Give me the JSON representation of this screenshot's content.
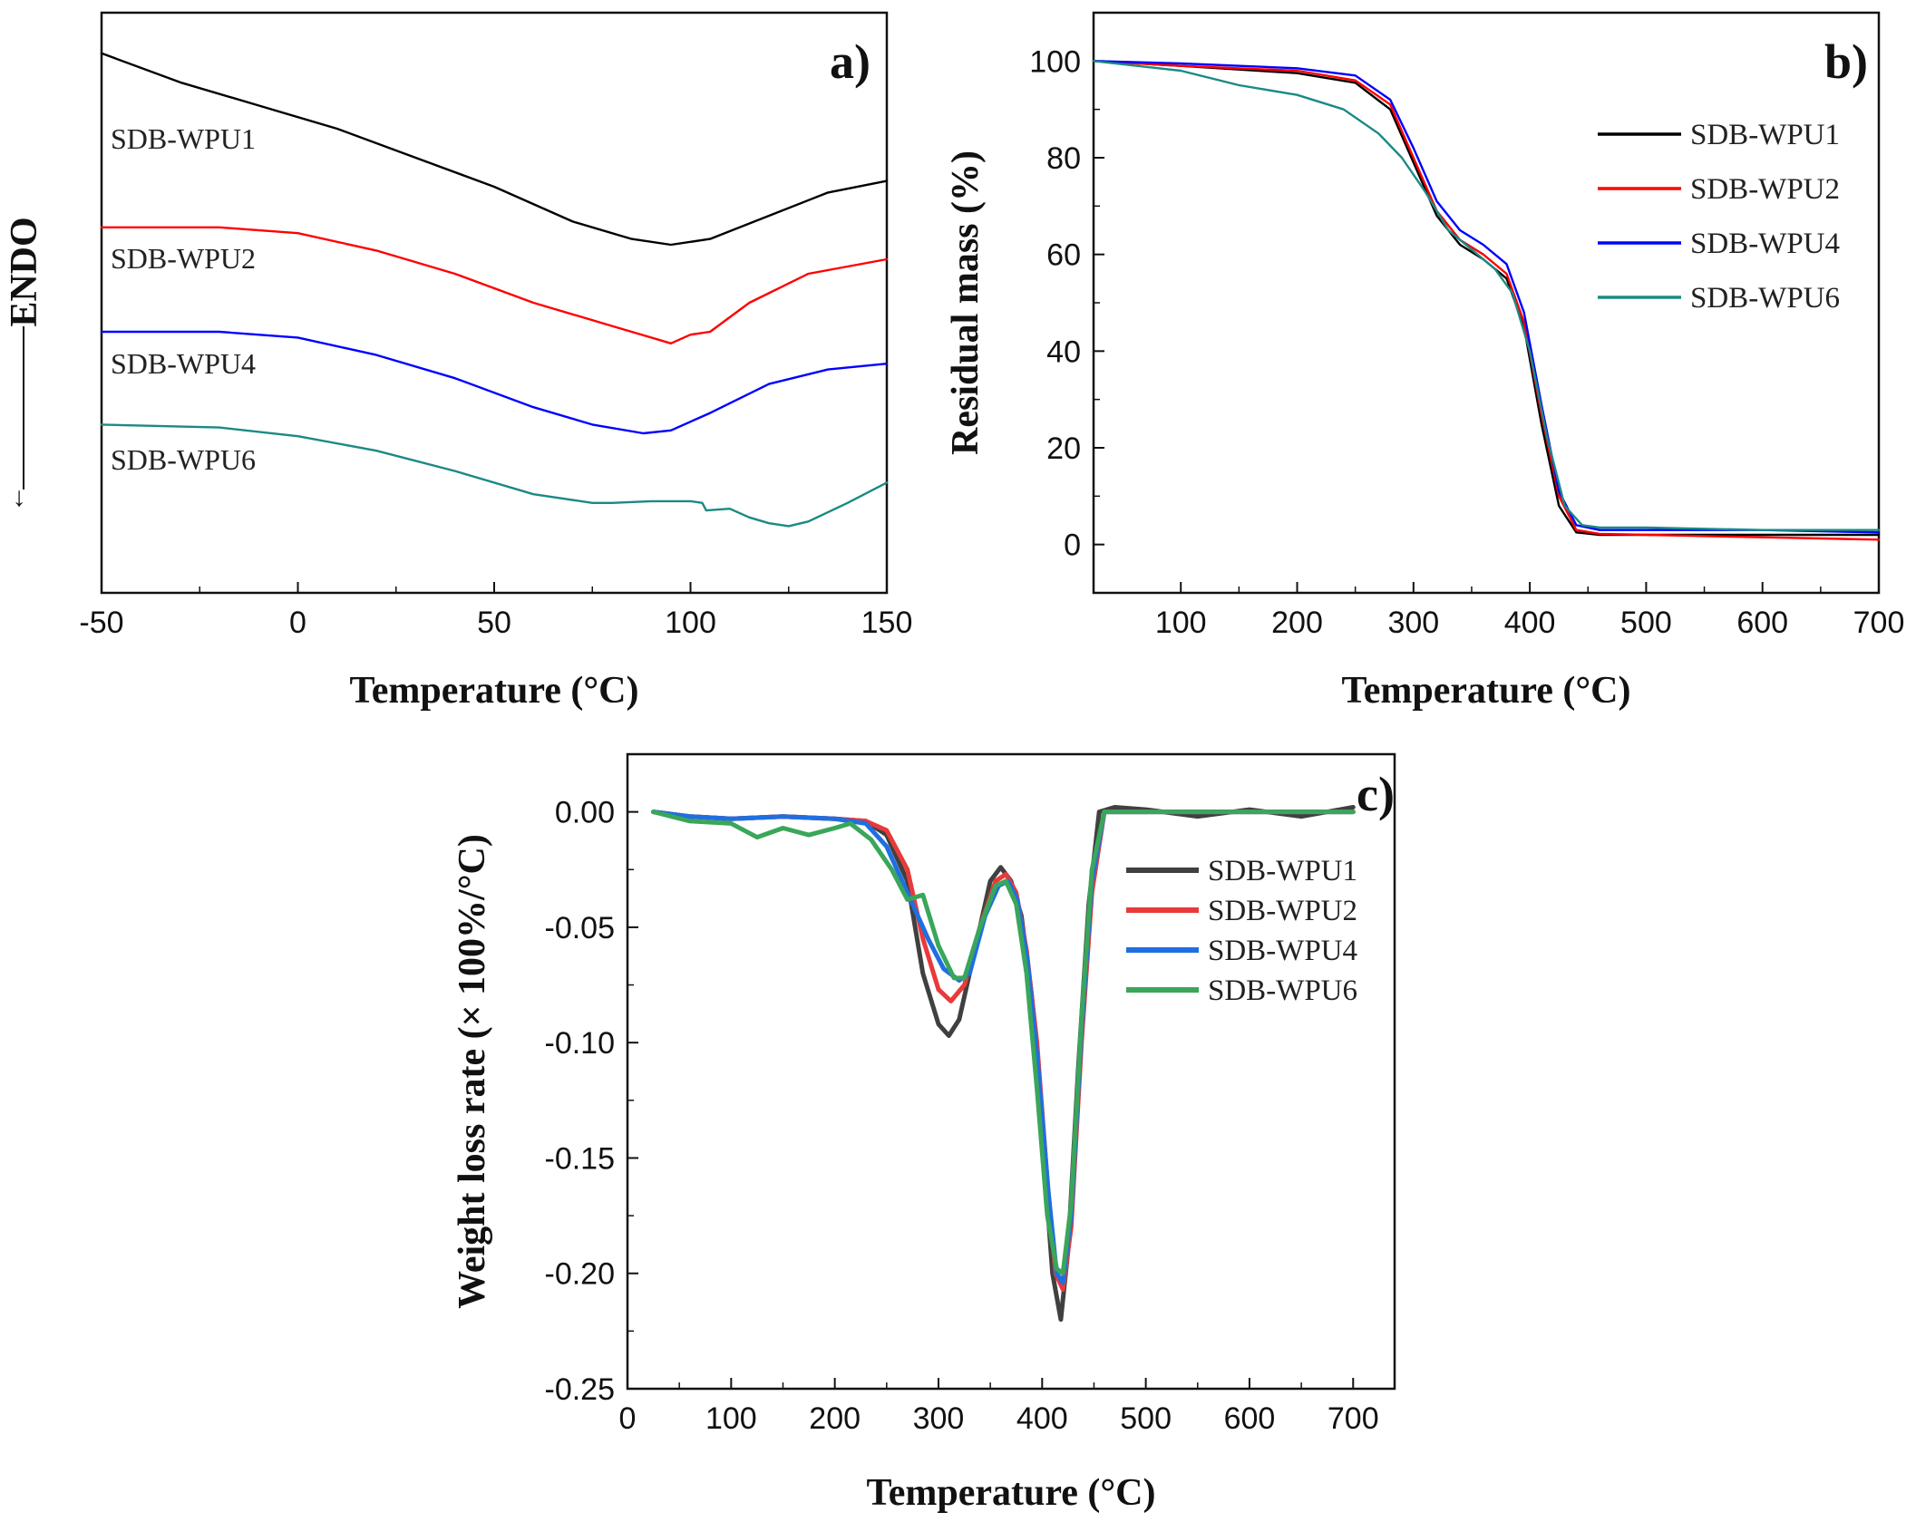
{
  "chart_data": [
    {
      "panel": "a",
      "type": "line",
      "panel_label": "a)",
      "xlabel": "Temperature (°C)",
      "ylabel": "ENDO",
      "ylabel_arrow": "←",
      "xlim": [
        -50,
        150
      ],
      "ylim": [
        0,
        100
      ],
      "xticks": [
        -50,
        0,
        50,
        100,
        150
      ],
      "xtick_labels": [
        "-50",
        "0",
        "50",
        "100",
        "150"
      ],
      "y_values_note": "arbitrary heat-flow units (no y ticks shown)",
      "series": [
        {
          "name": "SDB-WPU1",
          "color": "#000000",
          "x": [
            -50,
            -30,
            -10,
            10,
            30,
            50,
            70,
            85,
            95,
            105,
            120,
            135,
            150
          ],
          "y": [
            93,
            88,
            84,
            80,
            75,
            70,
            64,
            61,
            60,
            61,
            65,
            69,
            71
          ]
        },
        {
          "name": "SDB-WPU2",
          "color": "#ff0000",
          "x": [
            -50,
            -20,
            0,
            20,
            40,
            60,
            80,
            90,
            95,
            100,
            105,
            115,
            130,
            150
          ],
          "y": [
            63,
            63,
            62,
            59,
            55,
            50,
            46,
            44,
            43,
            44.5,
            45,
            50,
            55,
            57.5
          ]
        },
        {
          "name": "SDB-WPU4",
          "color": "#0000ff",
          "x": [
            -50,
            -20,
            0,
            20,
            40,
            60,
            75,
            88,
            95,
            105,
            120,
            135,
            150
          ],
          "y": [
            45,
            45,
            44,
            41,
            37,
            32,
            29,
            27.5,
            28,
            31,
            36,
            38.5,
            39.5
          ]
        },
        {
          "name": "SDB-WPU6",
          "color": "#1a8a84",
          "x": [
            -50,
            -20,
            0,
            20,
            40,
            60,
            75,
            80,
            90,
            100,
            103,
            104,
            110,
            115,
            120,
            125,
            130,
            140,
            150
          ],
          "y": [
            29,
            28.5,
            27,
            24.5,
            21,
            17,
            15.5,
            15.5,
            15.8,
            15.8,
            15.5,
            14.2,
            14.5,
            13,
            12,
            11.5,
            12.3,
            15.5,
            19
          ]
        }
      ]
    },
    {
      "panel": "b",
      "type": "line",
      "panel_label": "b)",
      "xlabel": "Temperature (°C)",
      "ylabel": "Residual mass (%)",
      "xlim": [
        25,
        700
      ],
      "ylim": [
        -10,
        110
      ],
      "xticks": [
        100,
        200,
        300,
        400,
        500,
        600,
        700
      ],
      "xtick_labels": [
        "100",
        "200",
        "300",
        "400",
        "500",
        "600",
        "700"
      ],
      "yticks": [
        0,
        20,
        40,
        60,
        80,
        100
      ],
      "ytick_labels": [
        "0",
        "20",
        "40",
        "60",
        "80",
        "100"
      ],
      "legend": "top-right",
      "series": [
        {
          "name": "SDB-WPU1",
          "color": "#000000",
          "x": [
            25,
            100,
            200,
            250,
            280,
            300,
            320,
            340,
            360,
            380,
            395,
            410,
            425,
            440,
            460,
            500,
            600,
            700
          ],
          "y": [
            100,
            99,
            97.5,
            95.5,
            90,
            79,
            68,
            62,
            59,
            55,
            45,
            25,
            8,
            2.5,
            2,
            2,
            2,
            2
          ]
        },
        {
          "name": "SDB-WPU2",
          "color": "#ff0000",
          "x": [
            25,
            100,
            200,
            250,
            280,
            300,
            320,
            340,
            360,
            380,
            395,
            410,
            425,
            440,
            460,
            500,
            600,
            700
          ],
          "y": [
            100,
            99,
            98,
            96,
            91,
            80,
            69,
            63,
            60,
            56,
            46,
            27,
            10,
            3,
            2.2,
            2,
            1.5,
            1
          ]
        },
        {
          "name": "SDB-WPU4",
          "color": "#0000ff",
          "x": [
            25,
            100,
            200,
            250,
            280,
            300,
            320,
            340,
            360,
            380,
            395,
            410,
            425,
            440,
            460,
            500,
            600,
            700
          ],
          "y": [
            100,
            99.5,
            98.5,
            97,
            92,
            82,
            71,
            65,
            62,
            58,
            48,
            29,
            11,
            4,
            3,
            3,
            3,
            2.5
          ]
        },
        {
          "name": "SDB-WPU6",
          "color": "#1a8a84",
          "x": [
            25,
            100,
            150,
            200,
            240,
            270,
            290,
            310,
            330,
            350,
            370,
            385,
            400,
            415,
            430,
            445,
            460,
            500,
            600,
            700
          ],
          "y": [
            100,
            98,
            95,
            93,
            90,
            85,
            80,
            73,
            65,
            61,
            57,
            52,
            40,
            22,
            8,
            4,
            3.5,
            3.5,
            3,
            3
          ]
        }
      ]
    },
    {
      "panel": "c",
      "type": "line",
      "panel_label": "c)",
      "xlabel": "Temperature (°C)",
      "ylabel": "Weight loss rate (× 100%/°C)",
      "xlim": [
        0,
        740
      ],
      "ylim": [
        -0.25,
        0.025
      ],
      "xticks": [
        0,
        100,
        200,
        300,
        400,
        500,
        600,
        700
      ],
      "xtick_labels": [
        "0",
        "100",
        "200",
        "300",
        "400",
        "500",
        "600",
        "700"
      ],
      "yticks": [
        0.0,
        -0.05,
        -0.1,
        -0.15,
        -0.2,
        -0.25
      ],
      "ytick_labels": [
        "0.00",
        "-0.05",
        "-0.10",
        "-0.15",
        "-0.20",
        "-0.25"
      ],
      "legend": "right",
      "series": [
        {
          "name": "SDB-WPU1",
          "color": "#404040",
          "x": [
            25,
            60,
            100,
            150,
            200,
            230,
            250,
            270,
            285,
            300,
            310,
            320,
            335,
            350,
            360,
            370,
            380,
            390,
            400,
            410,
            418,
            425,
            435,
            445,
            455,
            470,
            500,
            550,
            600,
            650,
            700
          ],
          "y": [
            0,
            -0.002,
            -0.003,
            -0.002,
            -0.003,
            -0.004,
            -0.01,
            -0.03,
            -0.07,
            -0.092,
            -0.097,
            -0.09,
            -0.06,
            -0.03,
            -0.024,
            -0.03,
            -0.045,
            -0.08,
            -0.14,
            -0.2,
            -0.22,
            -0.19,
            -0.11,
            -0.04,
            0,
            0.002,
            0.001,
            -0.002,
            0.001,
            -0.002,
            0.002
          ]
        },
        {
          "name": "SDB-WPU2",
          "color": "#e83a3a",
          "x": [
            25,
            60,
            100,
            150,
            200,
            230,
            250,
            270,
            285,
            300,
            312,
            325,
            340,
            355,
            365,
            375,
            385,
            395,
            405,
            413,
            420,
            428,
            438,
            448,
            460,
            500,
            600,
            700
          ],
          "y": [
            0,
            -0.002,
            -0.003,
            -0.002,
            -0.003,
            -0.004,
            -0.008,
            -0.025,
            -0.055,
            -0.077,
            -0.082,
            -0.075,
            -0.05,
            -0.03,
            -0.027,
            -0.035,
            -0.06,
            -0.1,
            -0.16,
            -0.2,
            -0.207,
            -0.18,
            -0.1,
            -0.035,
            0,
            0,
            0,
            0
          ]
        },
        {
          "name": "SDB-WPU4",
          "color": "#1f6fe0",
          "x": [
            25,
            60,
            100,
            150,
            200,
            230,
            250,
            270,
            290,
            305,
            320,
            330,
            345,
            358,
            367,
            376,
            386,
            396,
            406,
            414,
            420,
            428,
            438,
            448,
            460,
            500,
            600,
            700
          ],
          "y": [
            0,
            -0.002,
            -0.003,
            -0.002,
            -0.003,
            -0.005,
            -0.015,
            -0.035,
            -0.055,
            -0.068,
            -0.073,
            -0.07,
            -0.045,
            -0.032,
            -0.03,
            -0.038,
            -0.065,
            -0.11,
            -0.165,
            -0.2,
            -0.204,
            -0.175,
            -0.095,
            -0.03,
            0,
            0,
            0,
            0
          ]
        },
        {
          "name": "SDB-WPU6",
          "color": "#3aa65a",
          "x": [
            25,
            60,
            100,
            125,
            150,
            175,
            200,
            215,
            235,
            255,
            270,
            285,
            300,
            315,
            325,
            340,
            355,
            365,
            375,
            385,
            395,
            405,
            414,
            420,
            428,
            438,
            448,
            460,
            500,
            600,
            700
          ],
          "y": [
            0,
            -0.004,
            -0.005,
            -0.011,
            -0.007,
            -0.01,
            -0.007,
            -0.005,
            -0.012,
            -0.025,
            -0.038,
            -0.036,
            -0.058,
            -0.072,
            -0.072,
            -0.05,
            -0.032,
            -0.03,
            -0.04,
            -0.07,
            -0.12,
            -0.175,
            -0.198,
            -0.2,
            -0.17,
            -0.09,
            -0.025,
            0,
            0,
            0,
            0
          ]
        }
      ]
    }
  ]
}
